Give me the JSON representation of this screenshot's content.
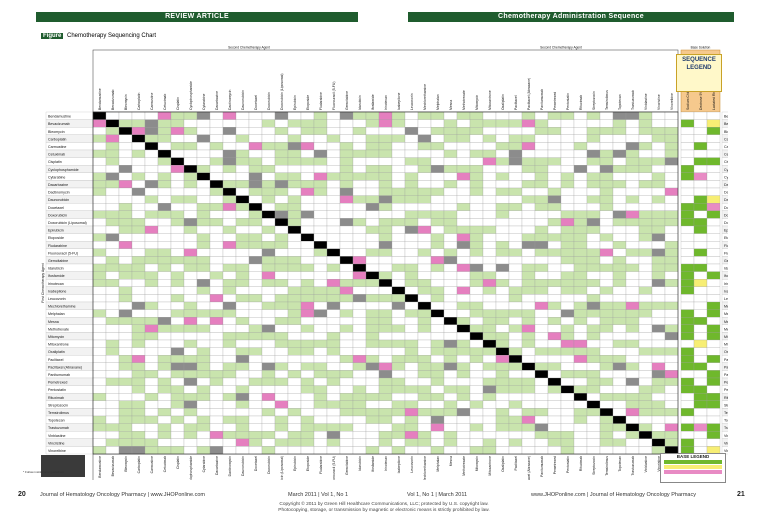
{
  "header": {
    "left_band": "REVIEW ARTICLE",
    "right_band": "Chemotherapy Administration Sequence"
  },
  "figure": {
    "tag": "Figure",
    "title": "Chemotherapy Sequencing Chart"
  },
  "sequence_legend": {
    "title_1": "SEQUENCE",
    "title_2": "LEGEND"
  },
  "base_legend": {
    "title": "BASE LEGEND"
  },
  "side_note": "* Follow institutional guidelines",
  "drugs": [
    "Bendamustine",
    "Bevacizumab",
    "Bleomycin",
    "Carboplatin",
    "Carmustine",
    "Cetuximab",
    "Cisplatin",
    "Cyclophosphamide",
    "Cytarabine",
    "Dacarbazine",
    "Dactinomycin",
    "Daunorubicin",
    "Docetaxel",
    "Doxorubicin",
    "Doxorubicin (Liposomal)",
    "Epirubicin",
    "Etoposide",
    "Fludarabine",
    "Fluorouracil (5-FU)",
    "Gemcitabine",
    "Idarubicin",
    "Ifosfamide",
    "Irinotecan",
    "Ixabepilone",
    "Leucovorin",
    "Mechlorethamine",
    "Melphalan",
    "Mesna",
    "Methotrexate",
    "Mitomycin",
    "Mitoxantrone",
    "Oxaliplatin",
    "Paclitaxel",
    "Paclitaxel (Abraxane)",
    "Panitumumab",
    "Pemetrexed",
    "Pentostatin",
    "Rituximab",
    "Streptozocin",
    "Temsirolimus",
    "Topotecan",
    "Trastuzumab",
    "Vinblastine",
    "Vincristine",
    "Vinorelbine"
  ],
  "extra_columns": [
    "Sodium Chloride",
    "Dextrose 5% Water",
    "Lactated Ringers"
  ],
  "header_groups": {
    "left": "Second Chemotherapy Agent",
    "right": "Second Chemotherapy Agent",
    "fluids": "Base Solution"
  },
  "row_group_label": "First Chemotherapy Agent",
  "row_group_label_right": "First Chemotherapy Agent",
  "footer": {
    "page_left": "20",
    "left_text": "Journal of Hematology Oncology Pharmacy  |  www.JHOPonline.com",
    "left_date": "March 2011  |  Vol 1, No 1",
    "right_date": "Vol 1, No 1  |  March 2011",
    "right_text": "www.JHOPonline.com  |  Journal of Hematology Oncology Pharmacy",
    "page_right": "21",
    "copyright_1": "Copyright © 2011 by Green Hill Healthcare Communications, LLC; protected by U.S. copyright law.",
    "copyright_2": "Photocopying, storage, or transmission by magnetic or electronic means is strictly prohibited by law."
  },
  "colors": {
    "band": "#1f5c2e",
    "cell_green": "#c9e4ad",
    "cell_pink": "#e57fbf",
    "cell_gray": "#8c8c8c",
    "cell_black": "#000000",
    "fluid_green": "#6fb82c",
    "fluid_yellow": "#f7ee74",
    "fluid_pink": "#e88bc4"
  }
}
